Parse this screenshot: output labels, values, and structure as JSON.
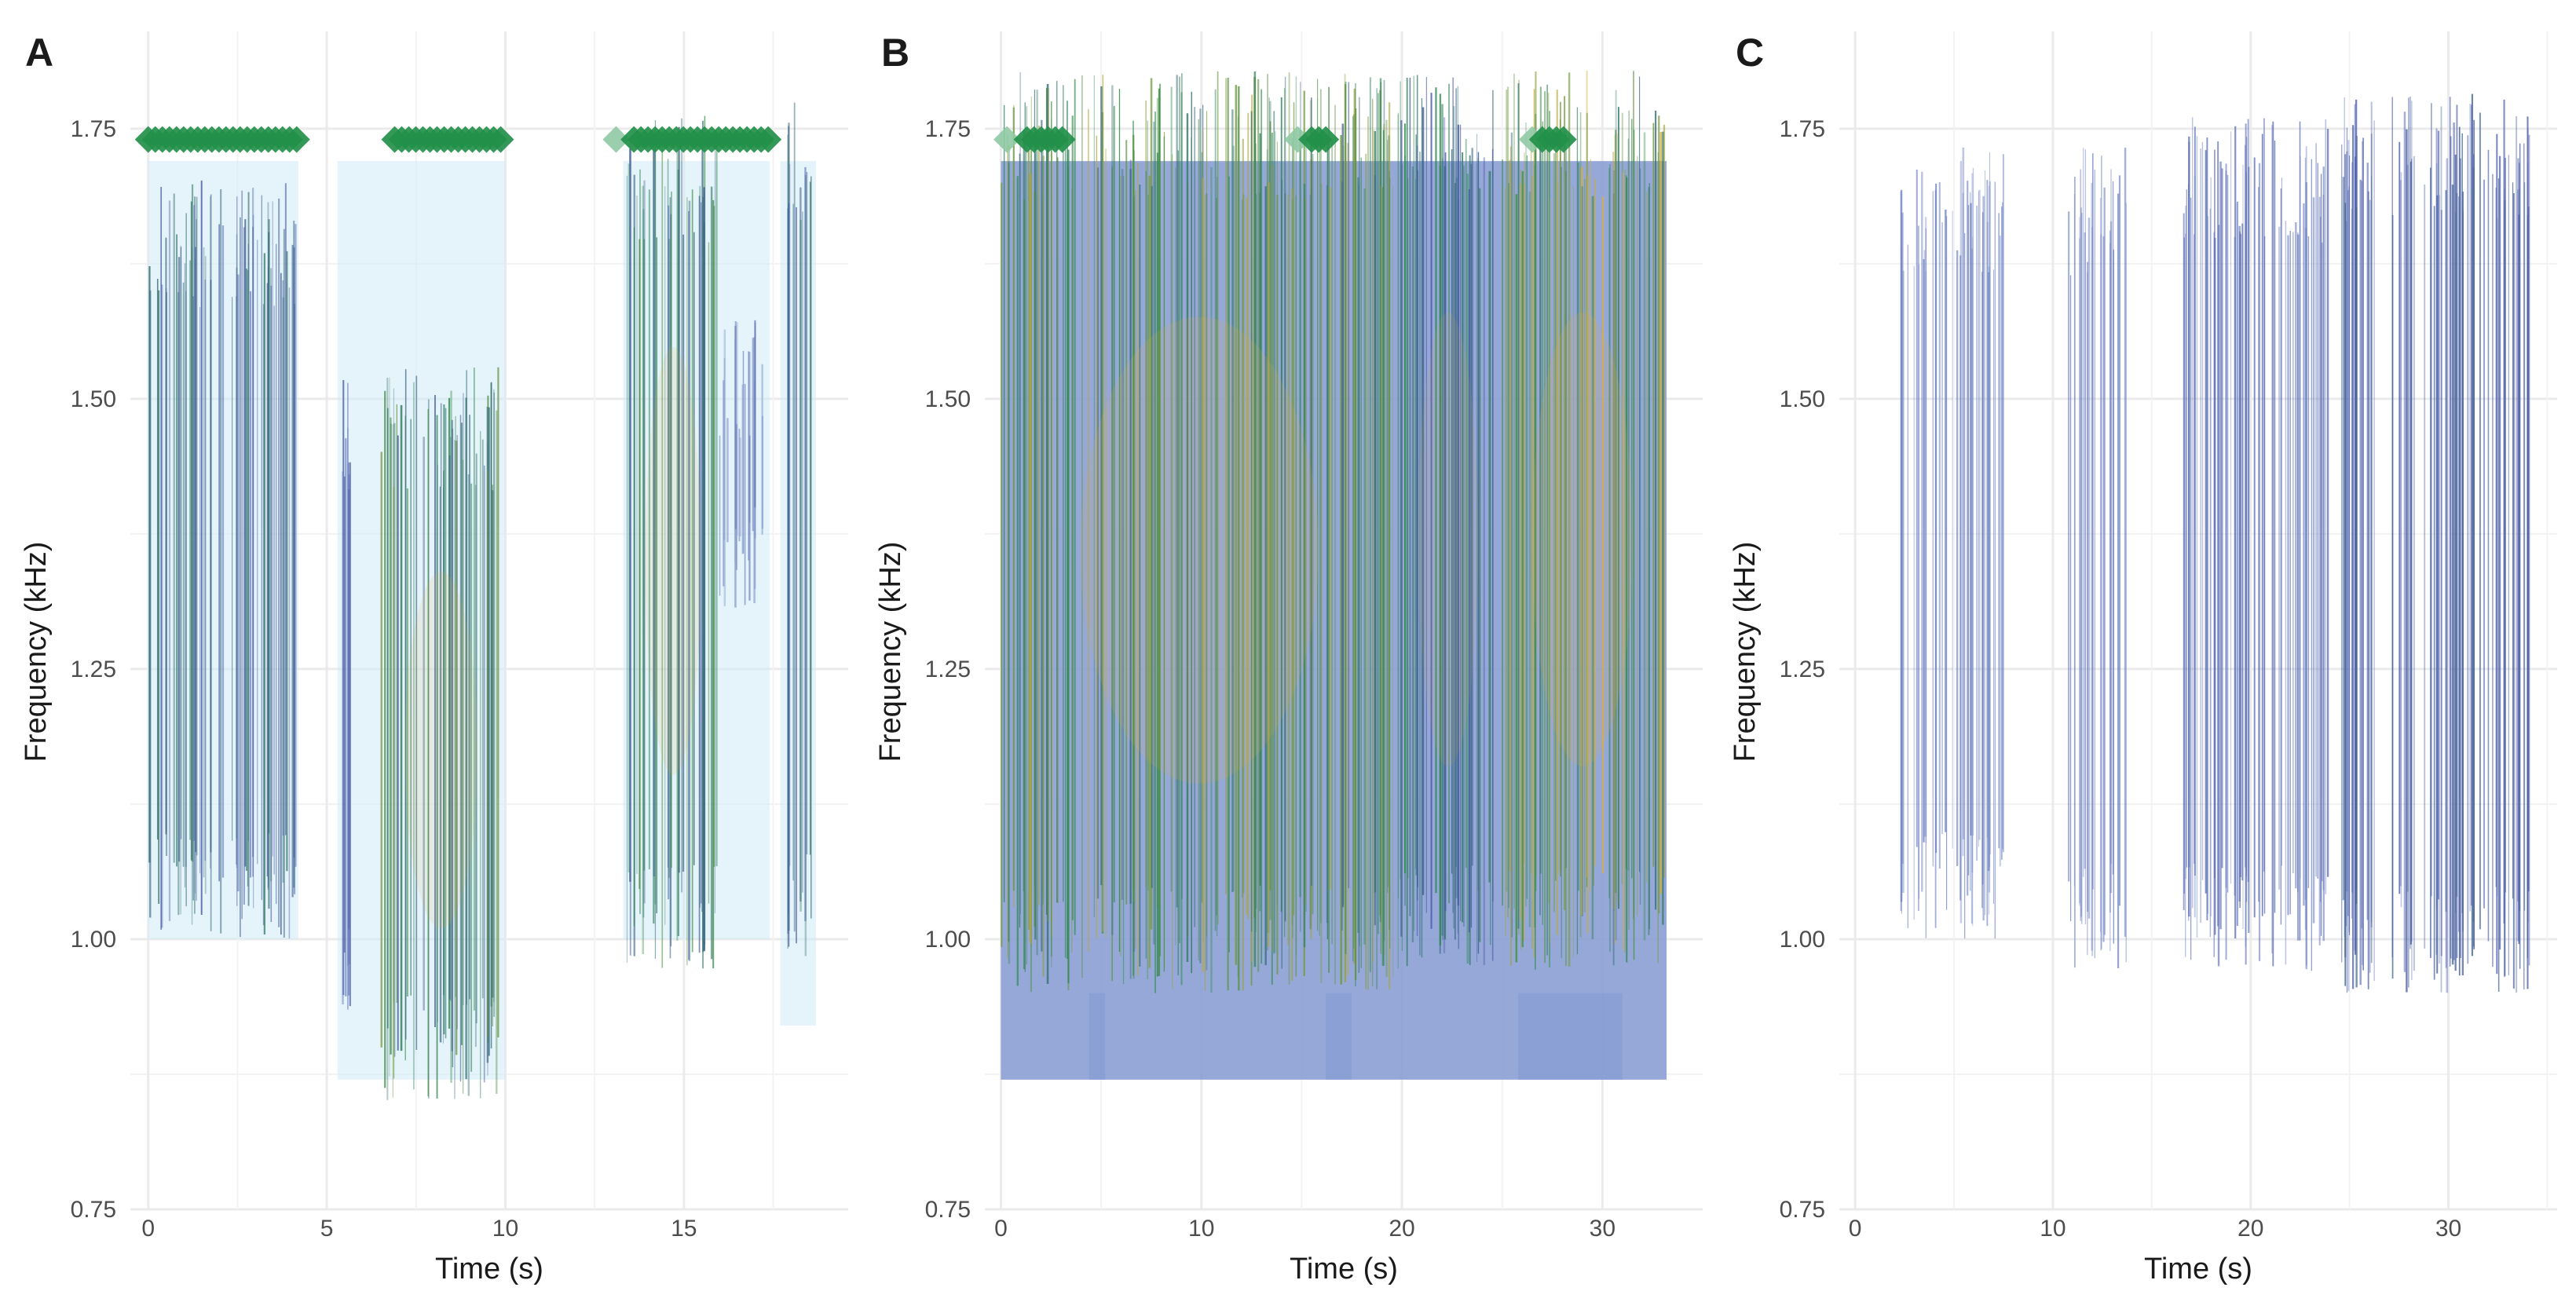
{
  "chart_data": [
    {
      "type": "heatmap",
      "panel_label": "A",
      "title": "",
      "xlabel": "Time (s)",
      "ylabel": "Frequency (kHz)",
      "xlim": [
        -0.5,
        19.6
      ],
      "ylim": [
        0.75,
        1.84
      ],
      "x_ticks": [
        0,
        5,
        10,
        15
      ],
      "y_ticks": [
        0.75,
        1.0,
        1.25,
        1.5,
        1.75
      ],
      "y_tick_labels": [
        "0.75",
        "1.00",
        "1.25",
        "1.50",
        "1.75"
      ],
      "grid": true,
      "legend": "none",
      "colors": {
        "low": "#cfeaf7",
        "mid_low": "#4a5aa8",
        "mid": "#2e8b4a",
        "high": "#e0b13a",
        "marker": "#23904a",
        "marker_faint": "#8fc9a3"
      },
      "detection_markers_y": 1.74,
      "detection_intervals": [
        [
          0.0,
          4.2
        ],
        [
          6.9,
          9.9
        ],
        [
          13.6,
          17.4
        ]
      ],
      "faint_markers": [
        13.1
      ],
      "energy_blocks": [
        {
          "x0": 0.0,
          "x1": 4.2,
          "f0": 1.05,
          "f1": 1.62,
          "level": 0.45
        },
        {
          "x0": 5.4,
          "x1": 5.7,
          "f0": 0.97,
          "f1": 1.45,
          "level": 0.3
        },
        {
          "x0": 6.5,
          "x1": 9.9,
          "f0": 0.9,
          "f1": 1.45,
          "level": 0.65
        },
        {
          "x0": 13.4,
          "x1": 16.0,
          "f0": 1.02,
          "f1": 1.68,
          "level": 0.6
        },
        {
          "x0": 16.0,
          "x1": 17.2,
          "f0": 1.35,
          "f1": 1.5,
          "level": 0.25
        },
        {
          "x0": 17.8,
          "x1": 18.6,
          "f0": 1.03,
          "f1": 1.7,
          "level": 0.5
        }
      ],
      "background_blocks": [
        {
          "x0": 0.0,
          "x1": 4.2,
          "f0": 1.0,
          "f1": 1.72
        },
        {
          "x0": 5.3,
          "x1": 10.0,
          "f0": 0.87,
          "f1": 1.72
        },
        {
          "x0": 13.3,
          "x1": 17.4,
          "f0": 1.0,
          "f1": 1.72
        },
        {
          "x0": 17.7,
          "x1": 18.7,
          "f0": 0.92,
          "f1": 1.72
        }
      ]
    },
    {
      "type": "heatmap",
      "panel_label": "B",
      "title": "",
      "xlabel": "Time (s)",
      "ylabel": "Frequency (kHz)",
      "xlim": [
        -0.8,
        35.0
      ],
      "ylim": [
        0.75,
        1.84
      ],
      "x_ticks": [
        0,
        10,
        20,
        30
      ],
      "y_ticks": [
        0.75,
        1.0,
        1.25,
        1.5,
        1.75
      ],
      "y_tick_labels": [
        "0.75",
        "1.00",
        "1.25",
        "1.50",
        "1.75"
      ],
      "grid": true,
      "legend": "none",
      "colors": {
        "low": "#8a9fd4",
        "mid_low": "#4a5aa8",
        "mid": "#2e8b4a",
        "high": "#e0b13a",
        "marker": "#23904a",
        "marker_faint": "#8fc9a3"
      },
      "detection_markers_y": 1.74,
      "detection_intervals": [
        [
          1.3,
          3.4
        ],
        [
          15.5,
          16.4
        ],
        [
          27.0,
          28.3
        ]
      ],
      "faint_markers": [
        0.3,
        14.8,
        26.5
      ],
      "energy_blocks": [
        {
          "x0": 0.0,
          "x1": 19.8,
          "f0": 1.0,
          "f1": 1.72,
          "level": 0.75
        },
        {
          "x0": 19.8,
          "x1": 24.8,
          "f0": 1.02,
          "f1": 1.72,
          "level": 0.55
        },
        {
          "x0": 24.8,
          "x1": 33.2,
          "f0": 1.02,
          "f1": 1.72,
          "level": 0.8
        }
      ],
      "background_blocks": [
        {
          "x0": 0.0,
          "x1": 33.2,
          "f0": 0.87,
          "f1": 1.72
        },
        {
          "x0": 4.4,
          "x1": 5.2,
          "f0": 0.87,
          "f1": 0.95
        },
        {
          "x0": 16.2,
          "x1": 17.5,
          "f0": 0.87,
          "f1": 0.95
        },
        {
          "x0": 25.8,
          "x1": 31.0,
          "f0": 0.87,
          "f1": 0.95
        }
      ]
    },
    {
      "type": "heatmap",
      "panel_label": "C",
      "title": "",
      "xlabel": "Time (s)",
      "ylabel": "Frequency (kHz)",
      "xlim": [
        -0.8,
        35.5
      ],
      "ylim": [
        0.75,
        1.84
      ],
      "x_ticks": [
        0,
        10,
        20,
        30
      ],
      "y_ticks": [
        0.75,
        1.0,
        1.25,
        1.5,
        1.75
      ],
      "y_tick_labels": [
        "0.75",
        "1.00",
        "1.25",
        "1.50",
        "1.75"
      ],
      "grid": true,
      "legend": "none",
      "colors": {
        "low": "#8a9fd4",
        "mid_low": "#4a5aa8",
        "mid": "#2e8b4a",
        "high": "#e0b13a"
      },
      "detection_intervals": [],
      "faint_markers": [],
      "energy_blocks": [
        {
          "x0": 2.3,
          "x1": 7.5,
          "f0": 1.05,
          "f1": 1.65,
          "level": 0.12
        },
        {
          "x0": 10.8,
          "x1": 13.8,
          "f0": 1.02,
          "f1": 1.65,
          "level": 0.15
        },
        {
          "x0": 16.5,
          "x1": 24.0,
          "f0": 1.02,
          "f1": 1.68,
          "level": 0.22
        },
        {
          "x0": 24.5,
          "x1": 34.2,
          "f0": 1.0,
          "f1": 1.7,
          "level": 0.35
        }
      ],
      "background_blocks": []
    }
  ]
}
